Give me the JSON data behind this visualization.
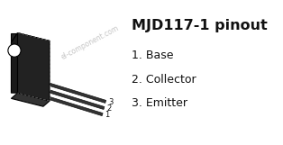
{
  "title": "MJD117-1 pinout",
  "title_fontsize": 11.5,
  "title_fontweight": "bold",
  "pin_labels": [
    "1. Base",
    "2. Collector",
    "3. Emitter"
  ],
  "pin_fontsize": 9,
  "watermark": "el-component.com",
  "watermark_color": "#bbbbbb",
  "watermark_fontsize": 5.5,
  "bg_color": "#ffffff",
  "body_color": "#222222",
  "body_edge_color": "#000000",
  "lead_color": "#333333",
  "text_color": "#111111",
  "hole_color": "#ffffff",
  "dashed_color": "#888888"
}
